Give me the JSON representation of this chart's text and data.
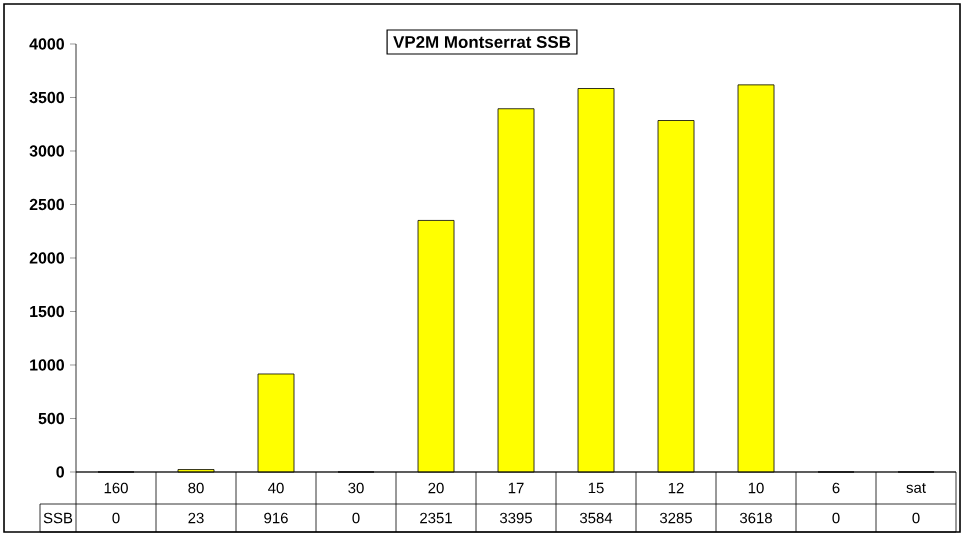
{
  "chart_data": {
    "type": "bar",
    "title": "VP2M Montserrat SSB",
    "categories": [
      "160",
      "80",
      "40",
      "30",
      "20",
      "17",
      "15",
      "12",
      "10",
      "6",
      "sat"
    ],
    "series": [
      {
        "name": "SSB",
        "color": "#ffff00",
        "values": [
          0,
          23,
          916,
          0,
          2351,
          3395,
          3584,
          3285,
          3618,
          0,
          0
        ]
      }
    ],
    "ylim": [
      0,
      4000
    ],
    "yticks": [
      0,
      500,
      1000,
      1500,
      2000,
      2500,
      3000,
      3500,
      4000
    ],
    "data_labels": true
  }
}
